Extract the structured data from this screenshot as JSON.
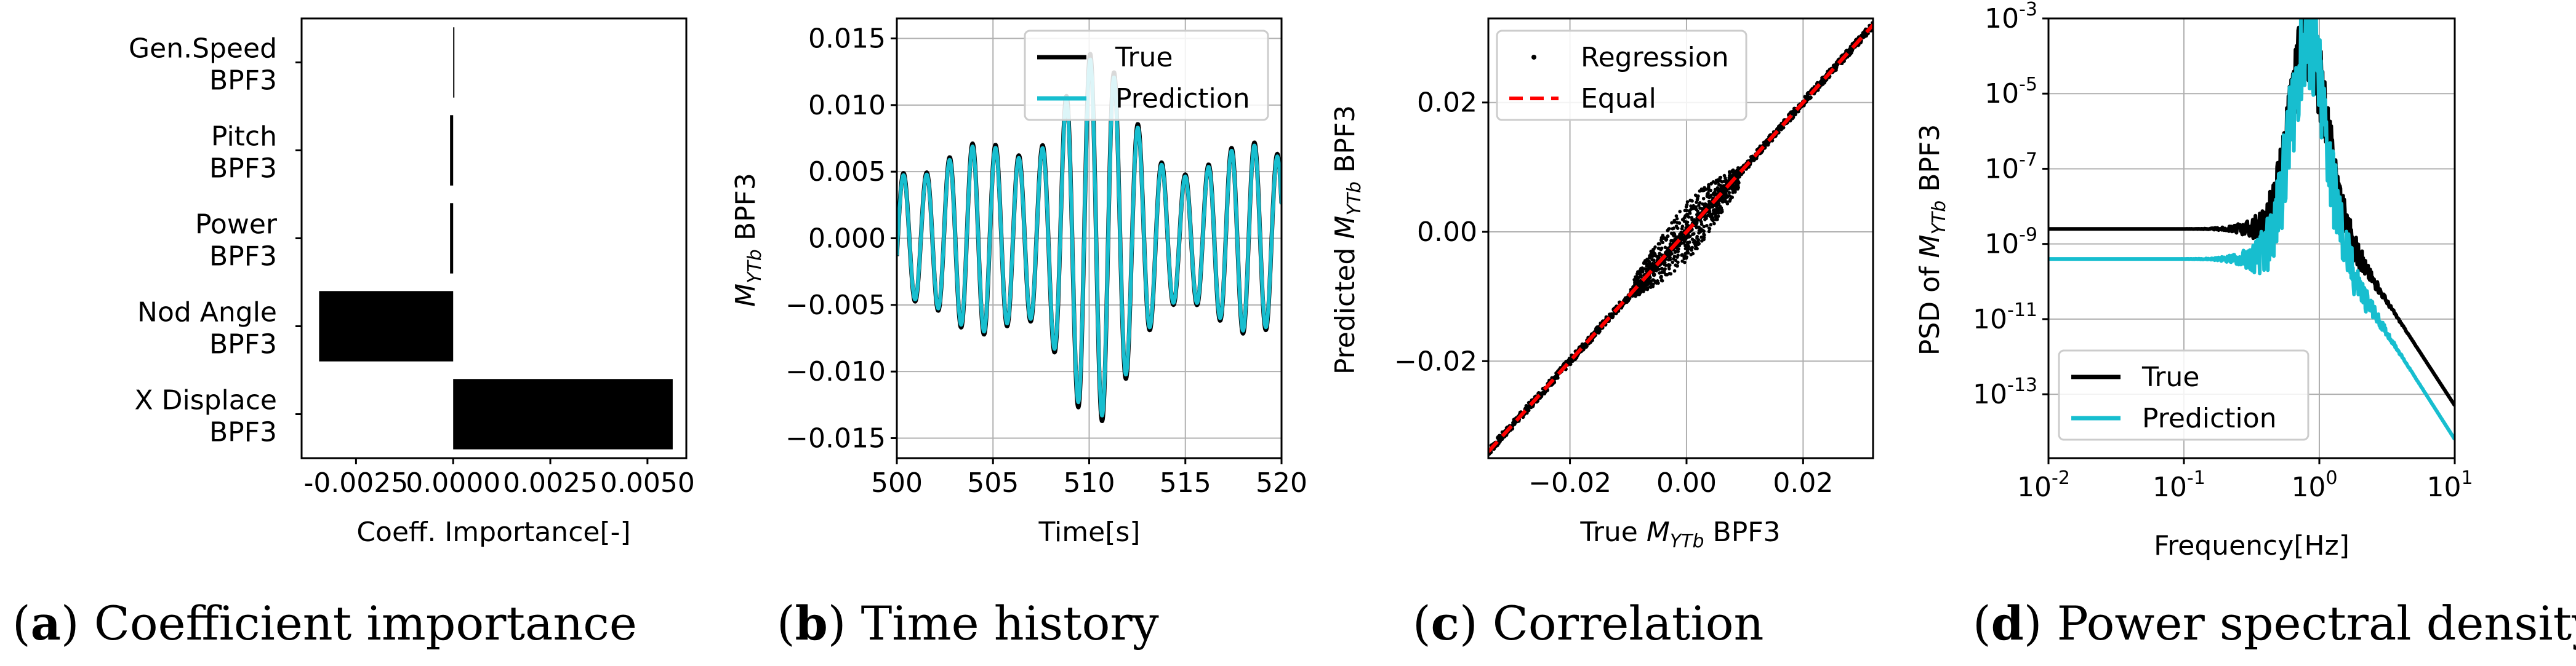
{
  "chart_data": [
    {
      "id": "a",
      "type": "bar",
      "orientation": "horizontal",
      "categories": [
        "Gen.Speed\nBPF3",
        "Pitch\nBPF3",
        "Power\nBPF3",
        "Nod Angle\nBPF3",
        "X Displace\nBPF3"
      ],
      "values": [
        0.0,
        -8e-05,
        -8e-05,
        -0.00345,
        0.00565
      ],
      "xlabel": "Coeff. Importance[-]",
      "xlim": [
        -0.0039,
        0.006
      ],
      "xticks": [
        "-0.0025",
        "0.0000",
        "0.0025",
        "0.0050"
      ],
      "xtick_values": [
        -0.0025,
        0.0,
        0.0025,
        0.005
      ],
      "bar_color": "#000000",
      "caption_letter": "a",
      "caption_text": ") Coefficient importance"
    },
    {
      "id": "b",
      "type": "line",
      "xlabel": "Time[s]",
      "ylabel_parts": [
        "M",
        "YTb",
        " BPF3"
      ],
      "xlim": [
        500,
        520
      ],
      "ylim": [
        -0.0165,
        0.0165
      ],
      "xticks": [
        "500",
        "505",
        "510",
        "515",
        "520"
      ],
      "xtick_values": [
        500,
        505,
        510,
        515,
        520
      ],
      "yticks": [
        "0.015",
        "0.010",
        "0.005",
        "0.000",
        "−0.005",
        "−0.010",
        "−0.015"
      ],
      "ytick_values": [
        0.015,
        0.01,
        0.005,
        0.0,
        -0.005,
        -0.01,
        -0.015
      ],
      "series": [
        {
          "name": "True",
          "color": "#000000"
        },
        {
          "name": "Prediction",
          "color": "#17becf"
        }
      ],
      "signal_description": "oscillation ~0.8 Hz with amplitude envelope peaking near 508-512 s",
      "caption_letter": "b",
      "caption_text": ") Time history"
    },
    {
      "id": "c",
      "type": "scatter",
      "xlabel_parts": [
        "True ",
        "M",
        "YTb",
        " BPF3"
      ],
      "ylabel_parts": [
        "Predicted ",
        "M",
        "YTb",
        " BPF3"
      ],
      "xlim": [
        -0.034,
        0.032
      ],
      "ylim": [
        -0.035,
        0.033
      ],
      "xticks": [
        "−0.02",
        "0.00",
        "0.02"
      ],
      "xtick_values": [
        -0.02,
        0.0,
        0.02
      ],
      "yticks": [
        "0.02",
        "0.00",
        "−0.02"
      ],
      "ytick_values": [
        0.02,
        0.0,
        -0.02
      ],
      "series": [
        {
          "name": "Regression",
          "color": "#000000"
        },
        {
          "name": "Equal",
          "color": "#ff0000"
        }
      ],
      "caption_letter": "c",
      "caption_text": ") Correlation"
    },
    {
      "id": "d",
      "type": "line",
      "scale": "loglog",
      "xlabel": "Frequency[Hz]",
      "ylabel_parts": [
        "PSD of ",
        "M",
        "YTb",
        " BPF3"
      ],
      "xlim": [
        0.01,
        10
      ],
      "ylim_log10": [
        -14.7,
        -3
      ],
      "xticks_exp": [
        "-2",
        "-1",
        "0",
        "1"
      ],
      "yticks_exp": [
        "-3",
        "-5",
        "-7",
        "-9",
        "-11",
        "-13"
      ],
      "tick_base": "10",
      "series": [
        {
          "name": "True",
          "color": "#000000",
          "baseline_log10": -8.6,
          "tail_at_10hz_log10": -13.3
        },
        {
          "name": "Prediction",
          "color": "#17becf",
          "baseline_log10": -9.4,
          "tail_at_10hz_log10": -14.2
        }
      ],
      "peak_frequency_hz": 0.82,
      "peak_log10": -3.6,
      "caption_letter": "d",
      "caption_text": ") Power spectral density"
    }
  ]
}
